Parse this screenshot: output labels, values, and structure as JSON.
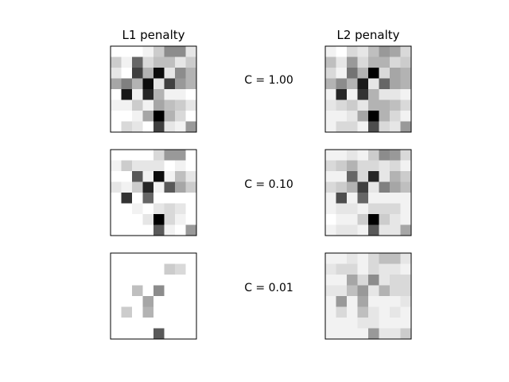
{
  "chart_data": {
    "type": "heatmap",
    "colormap": "gray_r",
    "grid": false,
    "column_titles": [
      "L1 penalty",
      "L2 penalty"
    ],
    "row_labels": [
      "C = 1.00",
      "C = 0.10",
      "C = 0.01"
    ],
    "panels": [
      {
        "title": "L1 penalty",
        "label": "C = 1.00",
        "values": [
          [
            0.0,
            0.0,
            0.0,
            0.05,
            0.2,
            0.45,
            0.45,
            0.1
          ],
          [
            0.2,
            0.05,
            0.6,
            0.15,
            0.25,
            0.25,
            0.1,
            0.2
          ],
          [
            0.1,
            0.0,
            0.75,
            0.3,
            0.95,
            0.1,
            0.45,
            0.3
          ],
          [
            0.35,
            0.5,
            0.3,
            0.95,
            0.1,
            0.75,
            0.4,
            0.3
          ],
          [
            0.0,
            0.9,
            0.05,
            0.85,
            0.3,
            0.05,
            0.05,
            0.0
          ],
          [
            0.05,
            0.05,
            0.2,
            0.05,
            0.35,
            0.25,
            0.2,
            0.1
          ],
          [
            0.0,
            0.0,
            0.05,
            0.35,
            1.0,
            0.3,
            0.15,
            0.0
          ],
          [
            0.0,
            0.15,
            0.1,
            0.0,
            0.75,
            0.1,
            0.05,
            0.4
          ]
        ]
      },
      {
        "title": "L2 penalty",
        "label": "C = 1.00",
        "values": [
          [
            0.05,
            0.0,
            0.15,
            0.1,
            0.25,
            0.4,
            0.35,
            0.15
          ],
          [
            0.25,
            0.1,
            0.4,
            0.15,
            0.3,
            0.3,
            0.15,
            0.2
          ],
          [
            0.15,
            0.05,
            0.55,
            0.3,
            1.0,
            0.15,
            0.35,
            0.3
          ],
          [
            0.3,
            0.45,
            0.3,
            0.9,
            0.1,
            0.6,
            0.35,
            0.3
          ],
          [
            0.05,
            0.85,
            0.05,
            0.8,
            0.3,
            0.1,
            0.1,
            0.05
          ],
          [
            0.1,
            0.15,
            0.2,
            0.1,
            0.3,
            0.3,
            0.25,
            0.15
          ],
          [
            0.05,
            0.05,
            0.1,
            0.35,
            1.0,
            0.3,
            0.15,
            0.05
          ],
          [
            0.05,
            0.15,
            0.15,
            0.05,
            0.7,
            0.15,
            0.1,
            0.4
          ]
        ]
      },
      {
        "title": "",
        "label": "C = 0.10",
        "values": [
          [
            0.0,
            0.0,
            0.0,
            0.0,
            0.15,
            0.4,
            0.4,
            0.0
          ],
          [
            0.05,
            0.2,
            0.1,
            0.1,
            0.1,
            0.0,
            0.05,
            0.0
          ],
          [
            0.0,
            0.0,
            0.65,
            0.05,
            0.95,
            0.05,
            0.25,
            0.1
          ],
          [
            0.1,
            0.05,
            0.2,
            0.85,
            0.05,
            0.65,
            0.35,
            0.2
          ],
          [
            0.0,
            0.8,
            0.0,
            0.6,
            0.0,
            0.0,
            0.0,
            0.0
          ],
          [
            0.0,
            0.0,
            0.05,
            0.0,
            0.1,
            0.15,
            0.1,
            0.0
          ],
          [
            0.0,
            0.0,
            0.0,
            0.1,
            1.0,
            0.15,
            0.05,
            0.0
          ],
          [
            0.0,
            0.0,
            0.0,
            0.0,
            0.65,
            0.05,
            0.0,
            0.4
          ]
        ]
      },
      {
        "title": "",
        "label": "C = 0.10",
        "values": [
          [
            0.05,
            0.05,
            0.1,
            0.05,
            0.2,
            0.45,
            0.4,
            0.15
          ],
          [
            0.15,
            0.2,
            0.3,
            0.15,
            0.15,
            0.1,
            0.15,
            0.05
          ],
          [
            0.05,
            0.05,
            0.6,
            0.15,
            0.85,
            0.1,
            0.3,
            0.2
          ],
          [
            0.15,
            0.2,
            0.3,
            0.75,
            0.1,
            0.5,
            0.35,
            0.25
          ],
          [
            0.05,
            0.7,
            0.05,
            0.6,
            0.05,
            0.05,
            0.05,
            0.05
          ],
          [
            0.05,
            0.1,
            0.1,
            0.05,
            0.15,
            0.15,
            0.15,
            0.05
          ],
          [
            0.0,
            0.05,
            0.05,
            0.2,
            1.0,
            0.2,
            0.1,
            0.05
          ],
          [
            0.05,
            0.1,
            0.1,
            0.05,
            0.65,
            0.1,
            0.1,
            0.35
          ]
        ]
      },
      {
        "title": "",
        "label": "C = 0.01",
        "values": [
          [
            0.0,
            0.0,
            0.0,
            0.0,
            0.0,
            0.0,
            0.0,
            0.0
          ],
          [
            0.0,
            0.0,
            0.0,
            0.0,
            0.0,
            0.2,
            0.15,
            0.0
          ],
          [
            0.0,
            0.0,
            0.0,
            0.0,
            0.0,
            0.0,
            0.0,
            0.0
          ],
          [
            0.0,
            0.0,
            0.25,
            0.0,
            0.45,
            0.0,
            0.0,
            0.0
          ],
          [
            0.0,
            0.0,
            0.0,
            0.35,
            0.0,
            0.0,
            0.0,
            0.0
          ],
          [
            0.0,
            0.2,
            0.0,
            0.3,
            0.0,
            0.0,
            0.0,
            0.0
          ],
          [
            0.0,
            0.0,
            0.0,
            0.0,
            0.0,
            0.0,
            0.0,
            0.0
          ],
          [
            0.0,
            0.0,
            0.0,
            0.0,
            0.65,
            0.0,
            0.0,
            0.0
          ]
        ]
      },
      {
        "title": "",
        "label": "C = 0.01",
        "values": [
          [
            0.05,
            0.05,
            0.1,
            0.05,
            0.15,
            0.25,
            0.25,
            0.1
          ],
          [
            0.1,
            0.15,
            0.15,
            0.05,
            0.15,
            0.1,
            0.1,
            0.05
          ],
          [
            0.05,
            0.05,
            0.35,
            0.15,
            0.45,
            0.1,
            0.15,
            0.15
          ],
          [
            0.1,
            0.1,
            0.25,
            0.4,
            0.1,
            0.3,
            0.15,
            0.15
          ],
          [
            0.05,
            0.4,
            0.05,
            0.35,
            0.05,
            0.05,
            0.05,
            0.1
          ],
          [
            0.05,
            0.15,
            0.05,
            0.25,
            0.1,
            0.05,
            0.1,
            0.05
          ],
          [
            0.05,
            0.05,
            0.05,
            0.1,
            0.1,
            0.05,
            0.05,
            0.05
          ],
          [
            0.05,
            0.05,
            0.05,
            0.05,
            0.4,
            0.1,
            0.1,
            0.2
          ]
        ]
      }
    ]
  }
}
